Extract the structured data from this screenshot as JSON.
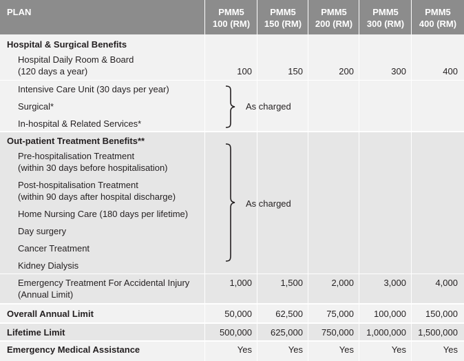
{
  "header": {
    "plan_label": "PLAN",
    "columns": [
      {
        "line1": "PMM5",
        "line2": "100 (RM)"
      },
      {
        "line1": "PMM5",
        "line2": "150 (RM)"
      },
      {
        "line1": "PMM5",
        "line2": "200 (RM)"
      },
      {
        "line1": "PMM5",
        "line2": "300 (RM)"
      },
      {
        "line1": "PMM5",
        "line2": "400 (RM)"
      }
    ]
  },
  "hospital": {
    "title": "Hospital & Surgical Benefits",
    "daily_room_line1": "Hospital Daily Room & Board",
    "daily_room_line2": "(120 days a year)",
    "daily_room_values": [
      "100",
      "150",
      "200",
      "300",
      "400"
    ],
    "icu": "Intensive Care Unit (30 days per year)",
    "surgical": "Surgical*",
    "in_hospital": "In-hospital & Related Services*",
    "as_charged": "As charged"
  },
  "outpatient": {
    "title": "Out-patient Treatment Benefits**",
    "pre_line1": "Pre-hospitalisation Treatment",
    "pre_line2": "(within 30 days before hospitalisation)",
    "post_line1": "Post-hospitalisation Treatment",
    "post_line2": "(within 90 days after hospital discharge)",
    "home_nursing": "Home Nursing Care (180 days per lifetime)",
    "day_surgery": "Day surgery",
    "cancer": "Cancer Treatment",
    "kidney": "Kidney Dialysis",
    "as_charged": "As charged",
    "emergency_line1": "Emergency Treatment For Accidental Injury",
    "emergency_line2": "(Annual Limit)",
    "emergency_values": [
      "1,000",
      "1,500",
      "2,000",
      "3,000",
      "4,000"
    ]
  },
  "overall": {
    "label": "Overall Annual Limit",
    "values": [
      "50,000",
      "62,500",
      "75,000",
      "100,000",
      "150,000"
    ]
  },
  "lifetime": {
    "label": "Lifetime Limit",
    "values": [
      "500,000",
      "625,000",
      "750,000",
      "1,000,000",
      "1,500,000"
    ]
  },
  "emergency_assist": {
    "label": "Emergency Medical Assistance",
    "values": [
      "Yes",
      "Yes",
      "Yes",
      "Yes",
      "Yes"
    ]
  },
  "colors": {
    "header_bg": "#8c8c8c",
    "light_bg": "#f2f2f2",
    "mid_bg": "#e6e6e6",
    "text": "#231f20"
  }
}
